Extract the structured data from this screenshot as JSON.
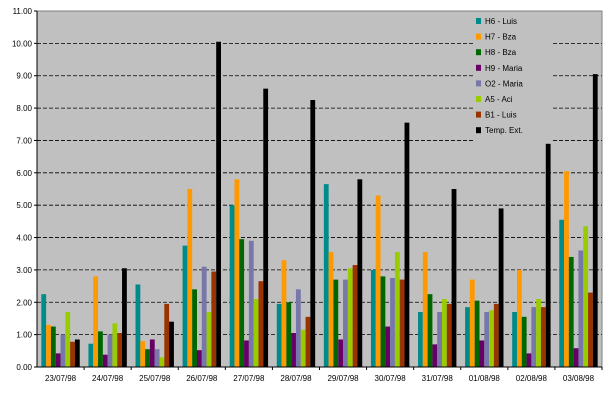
{
  "chart_data": {
    "type": "bar",
    "title": "",
    "xlabel": "",
    "ylabel": "",
    "ylim": [
      0,
      11
    ],
    "y_ticks": [
      "0.00",
      "1.00",
      "2.00",
      "3.00",
      "4.00",
      "5.00",
      "6.00",
      "7.00",
      "8.00",
      "9.00",
      "10.00",
      "11.00"
    ],
    "grid": true,
    "legend_position": "top-right inside plot",
    "plot_background": "#c0c0c0",
    "categories": [
      "23/07/98",
      "24/07/98",
      "25/07/98",
      "26/07/98",
      "27/07/98",
      "28/07/98",
      "29/07/98",
      "30/07/98",
      "31/07/98",
      "01/08/98",
      "02/08/98",
      "03/08/98"
    ],
    "series": [
      {
        "name": "H6 - Luis",
        "color": "#008b8b",
        "values": [
          2.25,
          0.72,
          2.55,
          3.75,
          5.0,
          1.95,
          5.65,
          3.0,
          1.7,
          1.85,
          1.7,
          4.55
        ]
      },
      {
        "name": "H7 - Bza",
        "color": "#ff9900",
        "values": [
          1.3,
          2.8,
          0.8,
          5.5,
          5.8,
          3.3,
          3.55,
          5.3,
          3.55,
          2.7,
          3.0,
          6.05
        ]
      },
      {
        "name": "H8 - Bza",
        "color": "#006600",
        "values": [
          1.25,
          1.1,
          0.55,
          2.4,
          3.95,
          2.0,
          2.7,
          2.8,
          2.25,
          2.05,
          1.55,
          3.4
        ]
      },
      {
        "name": "H9 - Maria",
        "color": "#660066",
        "values": [
          0.42,
          0.38,
          0.85,
          0.52,
          0.82,
          1.05,
          0.85,
          1.25,
          0.7,
          0.82,
          0.42,
          0.58
        ]
      },
      {
        "name": "O2 - Maria",
        "color": "#7777aa",
        "values": [
          1.0,
          1.0,
          0.55,
          3.1,
          3.9,
          2.4,
          2.7,
          2.75,
          1.7,
          1.7,
          1.85,
          3.6
        ]
      },
      {
        "name": "A5 - Aci",
        "color": "#99cc00",
        "values": [
          1.7,
          1.35,
          0.3,
          1.7,
          2.1,
          1.15,
          3.05,
          3.55,
          2.1,
          1.75,
          2.1,
          4.35
        ]
      },
      {
        "name": "B1 - Luis",
        "color": "#993300",
        "values": [
          0.78,
          1.05,
          1.95,
          2.95,
          2.65,
          1.55,
          3.15,
          2.7,
          1.95,
          1.95,
          1.85,
          2.3
        ]
      },
      {
        "name": "Temp. Ext.",
        "color": "#000000",
        "values": [
          0.85,
          3.05,
          1.4,
          10.05,
          8.6,
          8.25,
          5.8,
          7.55,
          5.5,
          4.9,
          7.0,
          9.05
        ]
      }
    ]
  }
}
